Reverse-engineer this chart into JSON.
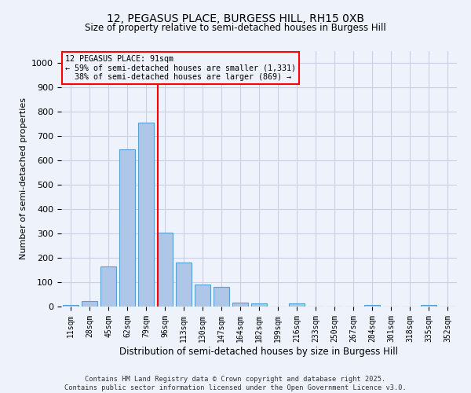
{
  "title1": "12, PEGASUS PLACE, BURGESS HILL, RH15 0XB",
  "title2": "Size of property relative to semi-detached houses in Burgess Hill",
  "xlabel": "Distribution of semi-detached houses by size in Burgess Hill",
  "ylabel": "Number of semi-detached properties",
  "bar_labels": [
    "11sqm",
    "28sqm",
    "45sqm",
    "62sqm",
    "79sqm",
    "96sqm",
    "113sqm",
    "130sqm",
    "147sqm",
    "164sqm",
    "182sqm",
    "199sqm",
    "216sqm",
    "233sqm",
    "250sqm",
    "267sqm",
    "284sqm",
    "301sqm",
    "318sqm",
    "335sqm",
    "352sqm"
  ],
  "bar_values": [
    5,
    22,
    165,
    645,
    755,
    305,
    182,
    90,
    80,
    15,
    12,
    0,
    13,
    0,
    0,
    0,
    5,
    0,
    0,
    5,
    0
  ],
  "bar_color": "#aec6e8",
  "bar_edge_color": "#5a9fd4",
  "property_label": "12 PEGASUS PLACE: 91sqm",
  "smaller_pct": 59,
  "smaller_count": 1331,
  "larger_pct": 38,
  "larger_count": 869,
  "vline_x_index": 4.62,
  "ylim": [
    0,
    1050
  ],
  "yticks": [
    0,
    100,
    200,
    300,
    400,
    500,
    600,
    700,
    800,
    900,
    1000
  ],
  "footer1": "Contains HM Land Registry data © Crown copyright and database right 2025.",
  "footer2": "Contains public sector information licensed under the Open Government Licence v3.0.",
  "bg_color": "#eef2fb",
  "grid_color": "#c8cfe8"
}
